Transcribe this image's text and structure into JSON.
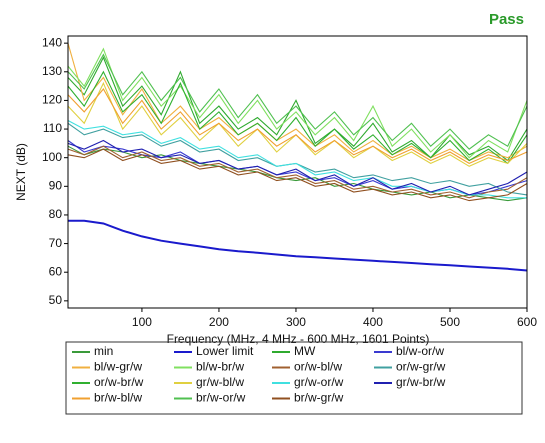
{
  "chart_data": {
    "type": "line",
    "annotation": "Pass",
    "x_label": "Frequency (MHz, 4 MHz - 600 MHz, 1601 Points)",
    "y_label": "NEXT (dB)",
    "xlim": [
      4,
      600
    ],
    "ylim": [
      47.5,
      142.5
    ],
    "xticks": [
      100,
      200,
      300,
      400,
      500,
      600
    ],
    "yticks": [
      50,
      60,
      70,
      80,
      90,
      100,
      110,
      120,
      130,
      140
    ],
    "grid": false,
    "legend": "bottom",
    "x": [
      4,
      25,
      50,
      75,
      100,
      125,
      150,
      175,
      200,
      225,
      250,
      275,
      300,
      325,
      350,
      375,
      400,
      425,
      450,
      475,
      500,
      525,
      550,
      575,
      600
    ],
    "series": [
      {
        "name": "min",
        "color": "#3a9a3a",
        "values": [
          104,
          101,
          103,
          102,
          100,
          101,
          99,
          98,
          97,
          96,
          95,
          93,
          92,
          93,
          90,
          91,
          89,
          88,
          87,
          88,
          86,
          87,
          86,
          85,
          86
        ]
      },
      {
        "name": "Lower limit",
        "color": "#1a1acc",
        "values": [
          78,
          78,
          77,
          74.5,
          72.5,
          71,
          70,
          69,
          68,
          67.3,
          66.8,
          66.2,
          65.6,
          65.2,
          64.8,
          64.4,
          64,
          63.6,
          63.2,
          62.8,
          62.4,
          62,
          61.6,
          61.2,
          60.6
        ]
      },
      {
        "name": "MW",
        "color": "#2faa2f",
        "values": [
          128,
          122,
          135,
          118,
          125,
          115,
          130,
          112,
          118,
          110,
          114,
          108,
          120,
          105,
          110,
          104,
          112,
          102,
          106,
          100,
          108,
          101,
          104,
          99,
          110
        ]
      },
      {
        "name": "bl/w-or/w",
        "color": "#3a3ad0",
        "values": [
          106,
          102,
          104,
          103,
          101,
          100,
          102,
          98,
          99,
          96,
          97,
          94,
          95,
          92,
          93,
          90,
          92,
          89,
          90,
          88,
          89,
          87,
          88,
          90,
          92
        ]
      },
      {
        "name": "bl/w-gr/w",
        "color": "#f0b040",
        "values": [
          140,
          120,
          128,
          115,
          124,
          112,
          118,
          110,
          114,
          108,
          112,
          106,
          110,
          104,
          108,
          102,
          106,
          101,
          104,
          100,
          103,
          99,
          102,
          100,
          104
        ]
      },
      {
        "name": "bl/w-br/w",
        "color": "#80e060",
        "values": [
          132,
          125,
          138,
          120,
          128,
          118,
          125,
          114,
          122,
          112,
          120,
          110,
          116,
          108,
          114,
          106,
          118,
          104,
          110,
          102,
          108,
          100,
          106,
          102,
          120
        ]
      },
      {
        "name": "or/w-bl/w",
        "color": "#a06030",
        "values": [
          103,
          101,
          104,
          100,
          102,
          99,
          100,
          97,
          98,
          95,
          96,
          93,
          94,
          91,
          92,
          89,
          90,
          88,
          89,
          87,
          88,
          86,
          88,
          89,
          93
        ]
      },
      {
        "name": "or/w-gr/w",
        "color": "#40a0a0",
        "values": [
          112,
          108,
          110,
          107,
          108,
          104,
          106,
          102,
          103,
          99,
          100,
          97,
          98,
          95,
          96,
          93,
          94,
          92,
          93,
          91,
          92,
          90,
          91,
          88,
          87
        ]
      },
      {
        "name": "or/w-br/w",
        "color": "#30b030",
        "values": [
          125,
          118,
          130,
          116,
          122,
          112,
          126,
          110,
          116,
          108,
          112,
          106,
          114,
          104,
          110,
          103,
          108,
          101,
          105,
          100,
          106,
          99,
          103,
          98,
          108
        ]
      },
      {
        "name": "gr/w-bl/w",
        "color": "#e0d040",
        "values": [
          118,
          112,
          126,
          110,
          118,
          108,
          114,
          106,
          112,
          104,
          110,
          102,
          108,
          101,
          106,
          100,
          104,
          99,
          102,
          98,
          101,
          97,
          100,
          98,
          105
        ]
      },
      {
        "name": "gr/w-or/w",
        "color": "#40e0e0",
        "values": [
          113,
          110,
          111,
          108,
          109,
          105,
          107,
          103,
          104,
          100,
          101,
          97,
          98,
          94,
          95,
          92,
          93,
          90,
          90,
          88,
          89,
          87,
          87,
          86,
          86
        ]
      },
      {
        "name": "gr/w-br/w",
        "color": "#2020b0",
        "values": [
          105,
          103,
          106,
          102,
          103,
          100,
          101,
          98,
          99,
          96,
          97,
          94,
          96,
          92,
          94,
          90,
          93,
          89,
          91,
          88,
          90,
          87,
          89,
          91,
          95
        ]
      },
      {
        "name": "br/w-bl/w",
        "color": "#f0a030",
        "values": [
          122,
          116,
          124,
          112,
          120,
          110,
          116,
          108,
          112,
          106,
          110,
          104,
          108,
          102,
          106,
          101,
          104,
          100,
          103,
          99,
          102,
          98,
          101,
          99,
          102
        ]
      },
      {
        "name": "br/w-or/w",
        "color": "#50c050",
        "values": [
          130,
          124,
          136,
          122,
          130,
          120,
          128,
          116,
          124,
          114,
          122,
          112,
          118,
          110,
          116,
          108,
          114,
          106,
          112,
          104,
          110,
          103,
          108,
          104,
          118
        ]
      },
      {
        "name": "br/w-gr/w",
        "color": "#905020",
        "values": [
          101,
          100,
          103,
          99,
          101,
          98,
          99,
          96,
          97,
          94,
          95,
          92,
          93,
          90,
          91,
          88,
          89,
          87,
          88,
          86,
          87,
          85,
          86,
          87,
          91
        ]
      }
    ]
  }
}
